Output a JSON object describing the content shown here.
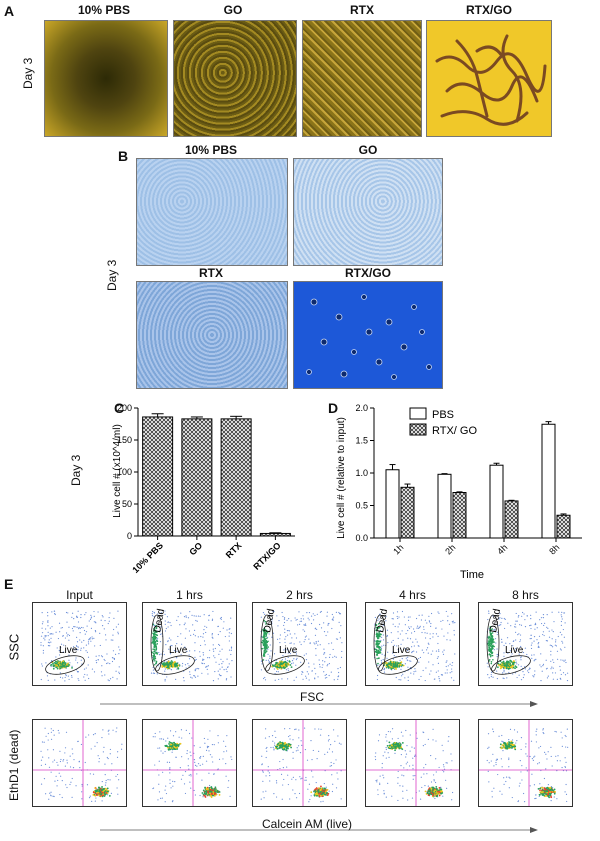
{
  "panel_a": {
    "label": "A",
    "side_label": "Day 3",
    "titles": [
      "10% PBS",
      "GO",
      "RTX",
      "RTX/GO"
    ]
  },
  "panel_b": {
    "label": "B",
    "side_label": "Day 3",
    "titles": [
      "10% PBS",
      "GO",
      "RTX",
      "RTX/GO"
    ]
  },
  "panel_c": {
    "label": "C",
    "side_label": "Day 3"
  },
  "panel_d": {
    "label": "D"
  },
  "panel_e": {
    "label": "E",
    "col_titles": [
      "Input",
      "1 hrs",
      "2 hrs",
      "4 hrs",
      "8 hrs"
    ],
    "row1_ylabel": "SSC",
    "row1_xlabel": "FSC",
    "row2_ylabel": "EthD1 (dead)",
    "row2_xlabel": "Calcein AM (live)",
    "gate_live": "Live",
    "gate_dead": "Dead"
  },
  "chart_data": [
    {
      "type": "bar",
      "panel": "C",
      "categories": [
        "10% PBS",
        "GO",
        "RTX",
        "RTX/GO"
      ],
      "values": [
        186,
        183,
        183,
        4
      ],
      "errors": [
        5,
        3,
        4,
        1
      ],
      "ylabel": "Live cell # (x10^4/ml)",
      "ylim": [
        0,
        200
      ],
      "yticks": [
        "0",
        "50",
        "100",
        "150",
        "200"
      ]
    },
    {
      "type": "bar",
      "panel": "D",
      "categories": [
        "1h",
        "2h",
        "4h",
        "8h"
      ],
      "xlabel": "Time",
      "ylabel": "Live cell # (relative to input)",
      "ylim": [
        0,
        2.0
      ],
      "yticks": [
        "0.0",
        "0.5",
        "1.0",
        "1.5",
        "2.0"
      ],
      "legend": [
        "PBS",
        "RTX/ GO"
      ],
      "series": [
        {
          "name": "PBS",
          "values": [
            1.05,
            0.98,
            1.12,
            1.75
          ],
          "errors": [
            0.08,
            0.01,
            0.03,
            0.04
          ]
        },
        {
          "name": "RTX/ GO",
          "values": [
            0.78,
            0.7,
            0.57,
            0.35
          ],
          "errors": [
            0.05,
            0.01,
            0.01,
            0.02
          ]
        }
      ]
    }
  ]
}
